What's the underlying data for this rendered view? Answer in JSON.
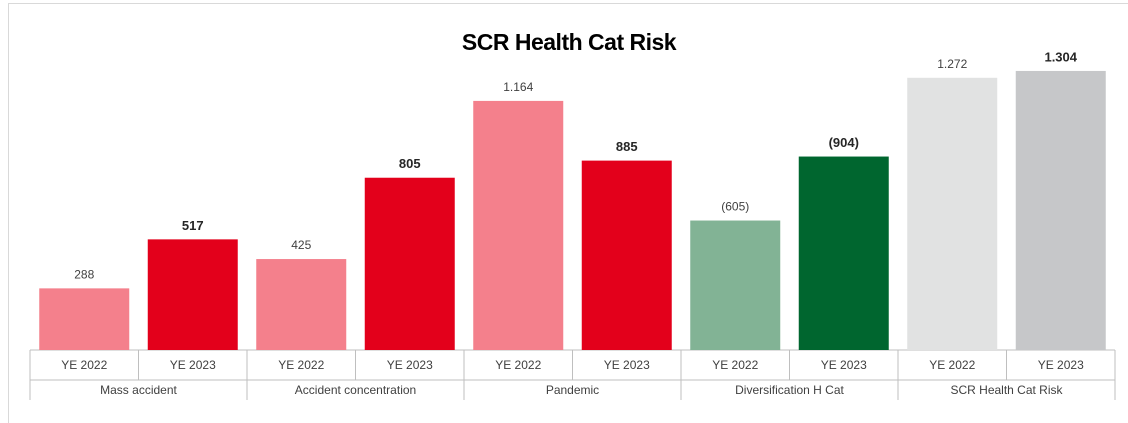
{
  "chart_data": {
    "type": "bar",
    "title": "SCR Health Cat Risk",
    "categories": [
      "Mass accident",
      "Accident concentration",
      "Pandemic",
      "Diversification H Cat",
      "SCR Health Cat Risk"
    ],
    "series": [
      {
        "name": "YE 2022",
        "values": [
          288,
          425,
          1164,
          605,
          1272
        ],
        "value_labels": [
          "288",
          "425",
          "1.164",
          "(605)",
          "1.272"
        ],
        "colors": [
          "#f4808c",
          "#f4808c",
          "#f4808c",
          "#82b395",
          "#e1e2e2"
        ]
      },
      {
        "name": "YE 2023",
        "values": [
          517,
          805,
          885,
          904,
          1304
        ],
        "value_labels": [
          "517",
          "805",
          "885",
          "(904)",
          "1.304"
        ],
        "colors": [
          "#e3001b",
          "#e3001b",
          "#e3001b",
          "#00662f",
          "#c6c7c9"
        ]
      }
    ]
  }
}
